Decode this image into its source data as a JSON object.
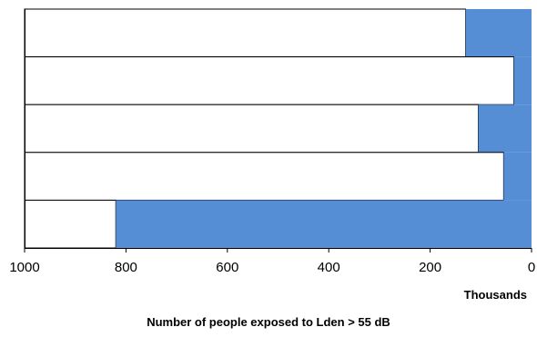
{
  "chart_data": {
    "type": "bar",
    "orientation": "horizontal",
    "x_axis_reversed": true,
    "title": "",
    "xlabel": "Number of people exposed to Lden > 55 dB",
    "x_unit": "Thousands",
    "ylabel": "",
    "xlim": [
      0,
      1000
    ],
    "x_ticks": [
      "1000",
      "800",
      "600",
      "400",
      "200",
      "0"
    ],
    "categories": [
      "",
      "",
      "",
      "",
      ""
    ],
    "values": [
      130,
      35,
      105,
      55,
      820
    ],
    "bar_color": "#558ed5",
    "background_color": "#ffffff",
    "grid": false,
    "legend": "none"
  }
}
